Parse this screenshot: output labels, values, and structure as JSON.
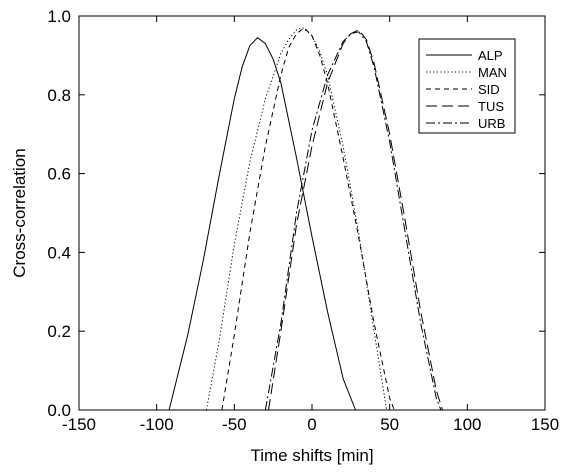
{
  "chart_data": {
    "type": "line",
    "title": "",
    "xlabel": "Time shifts [min]",
    "ylabel": "Cross-correlation",
    "xlim": [
      -150,
      150
    ],
    "ylim": [
      0.0,
      1.0
    ],
    "xticks": [
      "-150",
      "-100",
      "-50",
      "0",
      "50",
      "100",
      "150"
    ],
    "yticks": [
      "0.0",
      "0.2",
      "0.4",
      "0.6",
      "0.8",
      "1.0"
    ],
    "grid": false,
    "legend_position": "top-right",
    "series": [
      {
        "name": "ALP",
        "dash": "solid",
        "x": [
          -92,
          -80,
          -70,
          -60,
          -50,
          -45,
          -40,
          -35,
          -30,
          -25,
          -20,
          -10,
          0,
          10,
          20,
          28
        ],
        "y": [
          0.0,
          0.19,
          0.38,
          0.59,
          0.79,
          0.87,
          0.925,
          0.945,
          0.93,
          0.89,
          0.83,
          0.64,
          0.44,
          0.25,
          0.08,
          0.0
        ]
      },
      {
        "name": "MAN",
        "dash": "dotted",
        "x": [
          -68,
          -60,
          -50,
          -40,
          -30,
          -20,
          -15,
          -10,
          -6,
          0,
          5,
          10,
          20,
          30,
          40,
          48
        ],
        "y": [
          0.0,
          0.17,
          0.42,
          0.63,
          0.79,
          0.905,
          0.94,
          0.965,
          0.97,
          0.95,
          0.91,
          0.85,
          0.67,
          0.45,
          0.2,
          0.0
        ]
      },
      {
        "name": "SID",
        "dash": "dashed",
        "x": [
          -58,
          -50,
          -40,
          -30,
          -20,
          -15,
          -10,
          -5,
          0,
          5,
          10,
          20,
          30,
          40,
          50,
          53
        ],
        "y": [
          0.0,
          0.19,
          0.45,
          0.67,
          0.85,
          0.92,
          0.955,
          0.97,
          0.95,
          0.9,
          0.83,
          0.64,
          0.44,
          0.22,
          0.03,
          0.0
        ]
      },
      {
        "name": "TUS",
        "dash": "longdash",
        "x": [
          -28,
          -20,
          -10,
          0,
          10,
          20,
          25,
          30,
          35,
          40,
          50,
          60,
          70,
          80,
          84
        ],
        "y": [
          0.0,
          0.2,
          0.47,
          0.67,
          0.83,
          0.93,
          0.955,
          0.965,
          0.94,
          0.88,
          0.7,
          0.48,
          0.25,
          0.05,
          0.0
        ]
      },
      {
        "name": "URB",
        "dash": "dashdot",
        "x": [
          -30,
          -20,
          -10,
          0,
          10,
          20,
          25,
          30,
          35,
          40,
          50,
          60,
          70,
          80,
          83
        ],
        "y": [
          0.0,
          0.22,
          0.5,
          0.71,
          0.85,
          0.935,
          0.955,
          0.96,
          0.935,
          0.87,
          0.68,
          0.45,
          0.22,
          0.03,
          0.0
        ]
      }
    ]
  }
}
